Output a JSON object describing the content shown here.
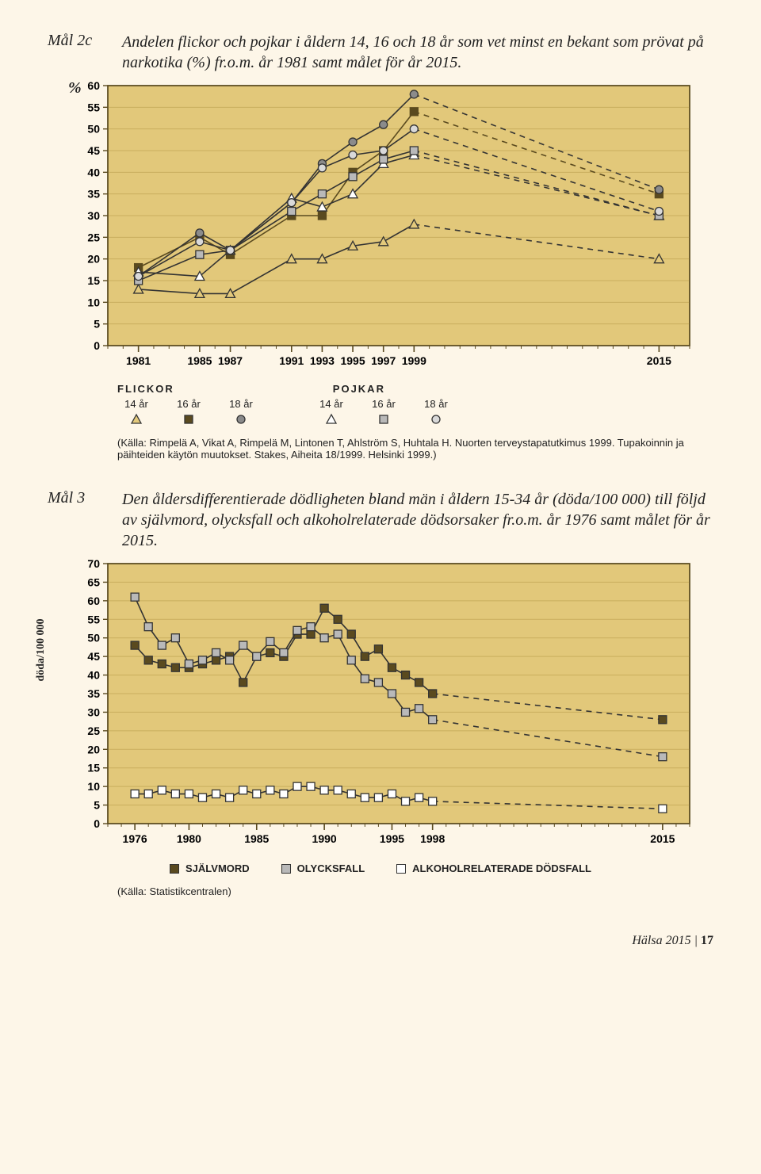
{
  "chart1": {
    "label": "Mål 2c",
    "caption": "Andelen flickor och pojkar i åldern 14, 16 och 18 år som vet minst en bekant som prövat på narkotika (%) fr.o.m. år 1981 samt målet för år 2015.",
    "ylabel": "%",
    "plot_bg": "#e2c87a",
    "frame": "#5a4a1f",
    "grid": "#c9ae5e",
    "xlim": [
      1979,
      2017
    ],
    "ylim": [
      0,
      60
    ],
    "yticks": [
      0,
      5,
      10,
      15,
      20,
      25,
      30,
      35,
      40,
      45,
      50,
      55,
      60
    ],
    "xticks": [
      1981,
      1985,
      1987,
      1991,
      1993,
      1995,
      1997,
      1999,
      2015
    ],
    "series": [
      {
        "name": "flickor-14",
        "marker": "tri",
        "fill": "#e3c97b",
        "stroke": "#333",
        "solid": [
          [
            1981,
            13
          ],
          [
            1985,
            12
          ],
          [
            1987,
            12
          ],
          [
            1991,
            20
          ],
          [
            1993,
            20
          ],
          [
            1995,
            23
          ],
          [
            1997,
            24
          ],
          [
            1999,
            28
          ]
        ],
        "dash": [
          [
            1999,
            28
          ],
          [
            2015,
            20
          ]
        ]
      },
      {
        "name": "flickor-16",
        "marker": "sq",
        "fill": "#5a4a1f",
        "stroke": "#5a4a1f",
        "solid": [
          [
            1981,
            18
          ],
          [
            1985,
            25
          ],
          [
            1987,
            21
          ],
          [
            1991,
            30
          ],
          [
            1993,
            30
          ],
          [
            1995,
            40
          ],
          [
            1997,
            45
          ],
          [
            1999,
            54
          ]
        ],
        "dash": [
          [
            1999,
            54
          ],
          [
            2015,
            35
          ]
        ]
      },
      {
        "name": "flickor-18",
        "marker": "circ",
        "fill": "#8b8b8b",
        "stroke": "#333",
        "solid": [
          [
            1981,
            16
          ],
          [
            1985,
            26
          ],
          [
            1987,
            22
          ],
          [
            1991,
            33
          ],
          [
            1993,
            42
          ],
          [
            1995,
            47
          ],
          [
            1997,
            51
          ],
          [
            1999,
            58
          ]
        ],
        "dash": [
          [
            1999,
            58
          ],
          [
            2015,
            36
          ]
        ]
      },
      {
        "name": "pojkar-14",
        "marker": "tri",
        "fill": "#ffffff",
        "stroke": "#333",
        "solid": [
          [
            1981,
            17
          ],
          [
            1985,
            16
          ],
          [
            1987,
            22
          ],
          [
            1991,
            34
          ],
          [
            1993,
            32
          ],
          [
            1995,
            35
          ],
          [
            1997,
            42
          ],
          [
            1999,
            44
          ]
        ],
        "dash": [
          [
            1999,
            44
          ],
          [
            2015,
            30
          ]
        ]
      },
      {
        "name": "pojkar-16",
        "marker": "sq",
        "fill": "#b9b9b9",
        "stroke": "#333",
        "solid": [
          [
            1981,
            15
          ],
          [
            1985,
            21
          ],
          [
            1987,
            22
          ],
          [
            1991,
            31
          ],
          [
            1993,
            35
          ],
          [
            1995,
            39
          ],
          [
            1997,
            43
          ],
          [
            1999,
            45
          ]
        ],
        "dash": [
          [
            1999,
            45
          ],
          [
            2015,
            30
          ]
        ]
      },
      {
        "name": "pojkar-18",
        "marker": "circ",
        "fill": "#d9d9d9",
        "stroke": "#333",
        "solid": [
          [
            1981,
            16
          ],
          [
            1985,
            24
          ],
          [
            1987,
            22
          ],
          [
            1991,
            33
          ],
          [
            1993,
            41
          ],
          [
            1995,
            44
          ],
          [
            1997,
            45
          ],
          [
            1999,
            50
          ]
        ],
        "dash": [
          [
            1999,
            50
          ],
          [
            2015,
            31
          ]
        ]
      }
    ],
    "legend": {
      "head_f": "FLICKOR",
      "head_p": "POJKAR",
      "items": [
        {
          "text": "14 år",
          "marker": "tri",
          "fill": "#e3c97b"
        },
        {
          "text": "16 år",
          "marker": "sq",
          "fill": "#5a4a1f"
        },
        {
          "text": "18 år",
          "marker": "circ",
          "fill": "#8b8b8b"
        },
        {
          "text": "14 år",
          "marker": "tri",
          "fill": "#ffffff"
        },
        {
          "text": "16 år",
          "marker": "sq",
          "fill": "#b9b9b9"
        },
        {
          "text": "18 år",
          "marker": "circ",
          "fill": "#d9d9d9"
        }
      ]
    },
    "source": "(Källa: Rimpelä A, Vikat A, Rimpelä M, Lintonen T, Ahlström S, Huhtala H. Nuorten terveystapatutkimus 1999. Tupakoinnin ja päihteiden käytön muutokset. Stakes, Aiheita 18/1999. Helsinki 1999.)"
  },
  "chart2": {
    "label": "Mål 3",
    "caption": "Den åldersdifferentierade dödligheten bland män i åldern 15-34 år (döda/100 000) till följd av självmord, olycksfall och alkoholrelaterade dödsorsaker fr.o.m. år 1976 samt målet för år 2015.",
    "ylabel": "döda/100 000",
    "plot_bg": "#e2c87a",
    "frame": "#5a4a1f",
    "grid": "#c9ae5e",
    "xlim": [
      1974,
      2017
    ],
    "ylim": [
      0,
      70
    ],
    "yticks": [
      0,
      5,
      10,
      15,
      20,
      25,
      30,
      35,
      40,
      45,
      50,
      55,
      60,
      65,
      70
    ],
    "xticks": [
      1976,
      1980,
      1985,
      1990,
      1995,
      1998,
      2015
    ],
    "series": [
      {
        "name": "sjalvmord",
        "marker": "sq",
        "fill": "#5a4a1f",
        "stroke": "#333",
        "solid": [
          [
            1976,
            48
          ],
          [
            1977,
            44
          ],
          [
            1978,
            43
          ],
          [
            1979,
            42
          ],
          [
            1980,
            42
          ],
          [
            1981,
            43
          ],
          [
            1982,
            44
          ],
          [
            1983,
            45
          ],
          [
            1984,
            38
          ],
          [
            1985,
            45
          ],
          [
            1986,
            46
          ],
          [
            1987,
            45
          ],
          [
            1988,
            51
          ],
          [
            1989,
            51
          ],
          [
            1990,
            58
          ],
          [
            1991,
            55
          ],
          [
            1992,
            51
          ],
          [
            1993,
            45
          ],
          [
            1994,
            47
          ],
          [
            1995,
            42
          ],
          [
            1996,
            40
          ],
          [
            1997,
            38
          ],
          [
            1998,
            35
          ]
        ],
        "dash": [
          [
            1998,
            35
          ],
          [
            2015,
            28
          ]
        ]
      },
      {
        "name": "olycksfall",
        "marker": "sq",
        "fill": "#b9b9b9",
        "stroke": "#333",
        "solid": [
          [
            1976,
            61
          ],
          [
            1977,
            53
          ],
          [
            1978,
            48
          ],
          [
            1979,
            50
          ],
          [
            1980,
            43
          ],
          [
            1981,
            44
          ],
          [
            1982,
            46
          ],
          [
            1983,
            44
          ],
          [
            1984,
            48
          ],
          [
            1985,
            45
          ],
          [
            1986,
            49
          ],
          [
            1987,
            46
          ],
          [
            1988,
            52
          ],
          [
            1989,
            53
          ],
          [
            1990,
            50
          ],
          [
            1991,
            51
          ],
          [
            1992,
            44
          ],
          [
            1993,
            39
          ],
          [
            1994,
            38
          ],
          [
            1995,
            35
          ],
          [
            1996,
            30
          ],
          [
            1997,
            31
          ],
          [
            1998,
            28
          ]
        ],
        "dash": [
          [
            1998,
            28
          ],
          [
            2015,
            18
          ]
        ]
      },
      {
        "name": "alkohol",
        "marker": "sq",
        "fill": "#ffffff",
        "stroke": "#333",
        "solid": [
          [
            1976,
            8
          ],
          [
            1977,
            8
          ],
          [
            1978,
            9
          ],
          [
            1979,
            8
          ],
          [
            1980,
            8
          ],
          [
            1981,
            7
          ],
          [
            1982,
            8
          ],
          [
            1983,
            7
          ],
          [
            1984,
            9
          ],
          [
            1985,
            8
          ],
          [
            1986,
            9
          ],
          [
            1987,
            8
          ],
          [
            1988,
            10
          ],
          [
            1989,
            10
          ],
          [
            1990,
            9
          ],
          [
            1991,
            9
          ],
          [
            1992,
            8
          ],
          [
            1993,
            7
          ],
          [
            1994,
            7
          ],
          [
            1995,
            8
          ],
          [
            1996,
            6
          ],
          [
            1997,
            7
          ],
          [
            1998,
            6
          ]
        ],
        "dash": [
          [
            1998,
            6
          ],
          [
            2015,
            4
          ]
        ]
      }
    ],
    "legend": [
      {
        "text": "SJÄLVMORD",
        "fill": "#5a4a1f"
      },
      {
        "text": "OLYCKSFALL",
        "fill": "#b9b9b9"
      },
      {
        "text": "ALKOHOLRELATERADE DÖDSFALL",
        "fill": "#ffffff"
      }
    ],
    "source": "(Källa: Statistikcentralen)"
  },
  "footer": {
    "title": "Hälsa 2015",
    "sep": "|",
    "page": "17"
  }
}
